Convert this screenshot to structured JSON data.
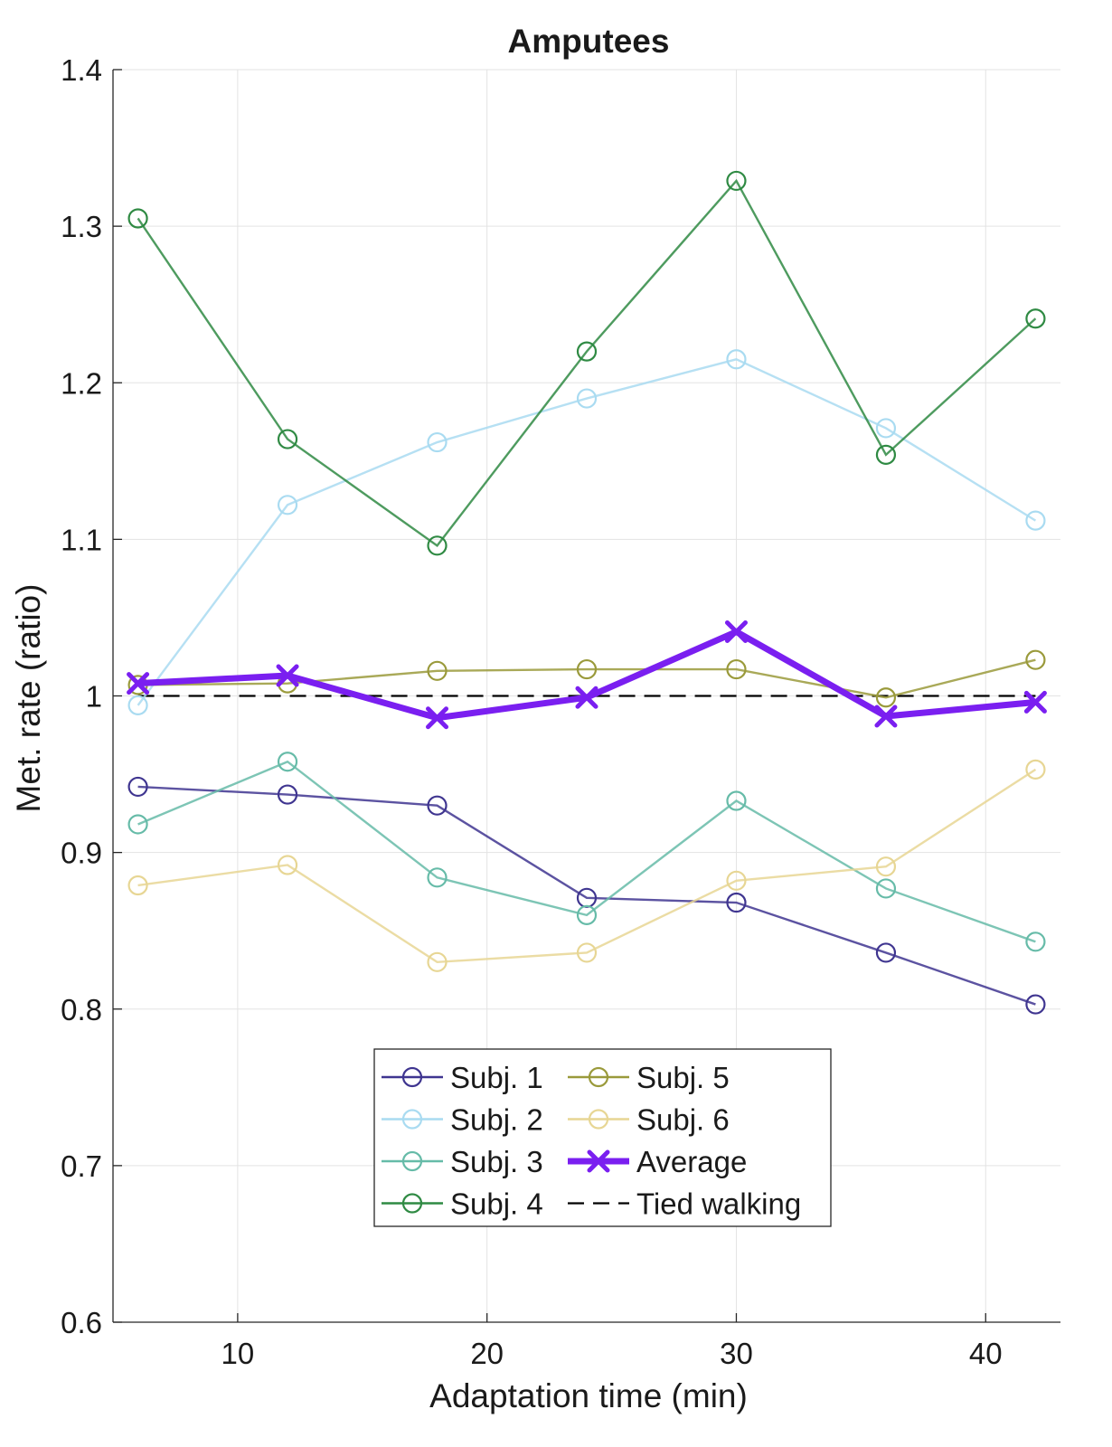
{
  "chart_data": {
    "type": "line",
    "title": "Amputees",
    "xlabel": "Adaptation time (min)",
    "ylabel": "Met. rate (ratio)",
    "xlim": [
      5,
      43
    ],
    "ylim": [
      0.6,
      1.4
    ],
    "xticks": [
      10,
      20,
      30,
      40
    ],
    "yticks": [
      0.6,
      0.7,
      0.8,
      0.9,
      1,
      1.1,
      1.2,
      1.3,
      1.4
    ],
    "xtick_labels": [
      "10",
      "20",
      "30",
      "40"
    ],
    "ytick_labels": [
      "0.6",
      "0.7",
      "0.8",
      "0.9",
      "1",
      "1.1",
      "1.2",
      "1.3",
      "1.4"
    ],
    "grid": true,
    "legend_position": "bottom-center",
    "x": [
      6,
      12,
      18,
      24,
      30,
      36,
      42
    ],
    "series": [
      {
        "name": "Subj. 1",
        "color": "#3f3590",
        "marker": "circle",
        "values": [
          0.942,
          0.937,
          0.93,
          0.871,
          0.868,
          0.836,
          0.803
        ]
      },
      {
        "name": "Subj. 2",
        "color": "#a9dbf1",
        "marker": "circle",
        "values": [
          0.994,
          1.122,
          1.162,
          1.19,
          1.215,
          1.171,
          1.112
        ]
      },
      {
        "name": "Subj. 3",
        "color": "#66bba8",
        "marker": "circle",
        "values": [
          0.918,
          0.958,
          0.884,
          0.86,
          0.933,
          0.877,
          0.843
        ]
      },
      {
        "name": "Subj. 4",
        "color": "#2f8a43",
        "marker": "circle",
        "values": [
          1.305,
          1.164,
          1.096,
          1.22,
          1.329,
          1.154,
          1.241
        ]
      },
      {
        "name": "Subj. 5",
        "color": "#9a9a3b",
        "marker": "circle",
        "values": [
          1.007,
          1.008,
          1.016,
          1.017,
          1.017,
          0.999,
          1.023
        ]
      },
      {
        "name": "Subj. 6",
        "color": "#e7d694",
        "marker": "circle",
        "values": [
          0.879,
          0.892,
          0.83,
          0.836,
          0.882,
          0.891,
          0.953
        ]
      },
      {
        "name": "Average",
        "color": "#7a1ff0",
        "marker": "x",
        "values": [
          1.008,
          1.013,
          0.986,
          0.999,
          1.041,
          0.987,
          0.996
        ]
      },
      {
        "name": "Tied walking",
        "color": "#000000",
        "marker": "none",
        "dashed": true,
        "values": [
          1,
          1,
          1,
          1,
          1,
          1,
          1
        ]
      }
    ]
  }
}
